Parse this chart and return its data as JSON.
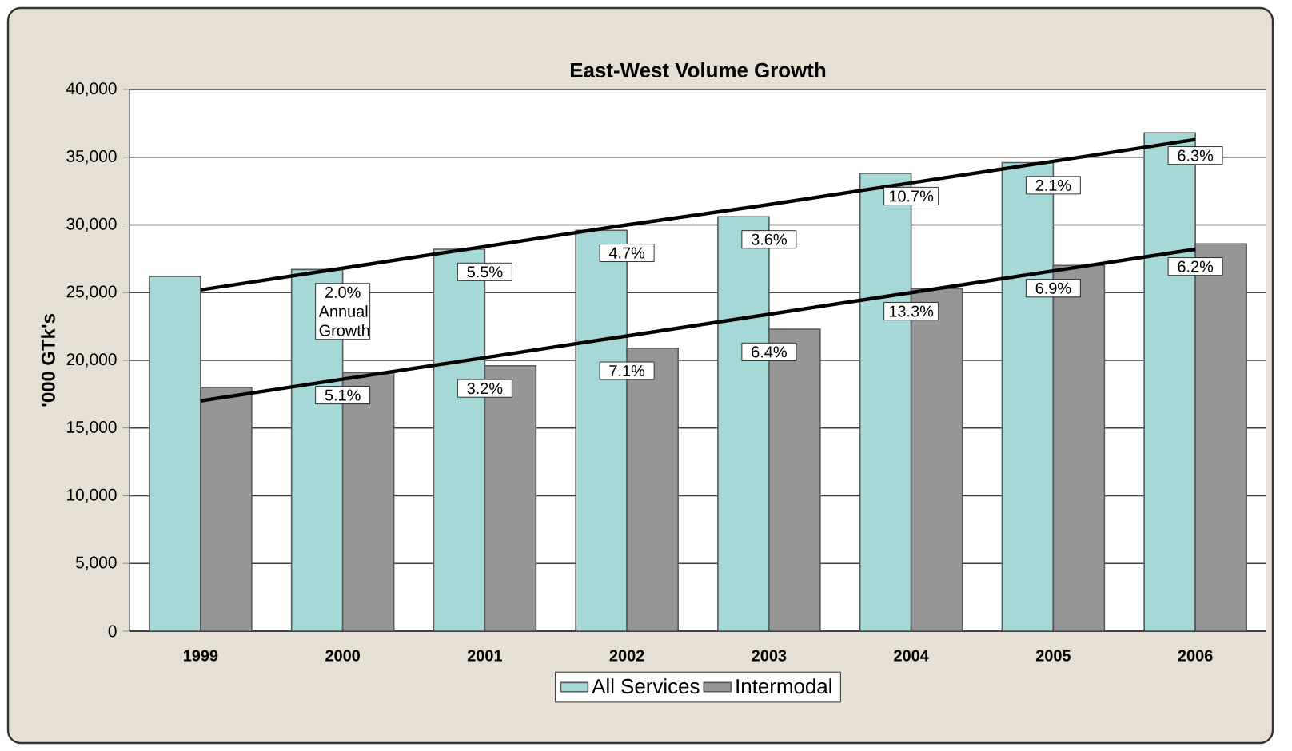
{
  "chart_data": {
    "type": "bar",
    "title": "East-West Volume Growth",
    "ylabel": "'000 GTk's",
    "categories": [
      "1999",
      "2000",
      "2001",
      "2002",
      "2003",
      "2004",
      "2005",
      "2006"
    ],
    "series": [
      {
        "name": "All Services",
        "color": "#a6d8d8",
        "values": [
          26200,
          26700,
          28200,
          29600,
          30600,
          33800,
          34600,
          36800
        ]
      },
      {
        "name": "Intermodal",
        "color": "#969696",
        "values": [
          18000,
          19100,
          19600,
          20900,
          22300,
          25300,
          27000,
          28600
        ]
      },
      {
        "type": "line",
        "color": "#000000",
        "values": [
          25200,
          26800,
          28400,
          30000,
          31500,
          33100,
          34700,
          36300
        ]
      },
      {
        "type": "line",
        "color": "#000000",
        "values": [
          17000,
          18600,
          20200,
          21800,
          23400,
          25000,
          26600,
          28200
        ]
      }
    ],
    "annotations": [
      {
        "text": "2.0% Annual Growth",
        "x": "2000",
        "y": 26700
      },
      {
        "text": "5.5%",
        "x": "2001",
        "y": 28200
      },
      {
        "text": "4.7%",
        "x": "2002",
        "y": 29600
      },
      {
        "text": "3.6%",
        "x": "2003",
        "y": 30600
      },
      {
        "text": "10.7%",
        "x": "2004",
        "y": 33800
      },
      {
        "text": "2.1%",
        "x": "2005",
        "y": 34600
      },
      {
        "text": "6.3%",
        "x": "2006",
        "y": 36800
      },
      {
        "text": "5.1%",
        "x": "2000",
        "y": 19100
      },
      {
        "text": "3.2%",
        "x": "2001",
        "y": 19600
      },
      {
        "text": "7.1%",
        "x": "2002",
        "y": 20900
      },
      {
        "text": "6.4%",
        "x": "2003",
        "y": 22300
      },
      {
        "text": "13.3%",
        "x": "2004",
        "y": 25300
      },
      {
        "text": "6.9%",
        "x": "2005",
        "y": 27000
      },
      {
        "text": "6.2%",
        "x": "2006",
        "y": 28600
      }
    ],
    "ylim": [
      0,
      40000
    ],
    "yticks": [
      0,
      {
        "value": 5000,
        "label": "5,000"
      },
      {
        "value": 10000,
        "label": "10,000"
      },
      {
        "value": 15000,
        "label": "15,000"
      },
      {
        "value": 20000,
        "label": "20,000"
      },
      {
        "value": 25000,
        "label": "25,000"
      },
      {
        "value": 30000,
        "label": "30,000"
      },
      {
        "value": 35000,
        "label": "35,000"
      },
      {
        "value": 40000,
        "label": "40,000"
      }
    ],
    "grid": "y",
    "legend": "bottom"
  }
}
